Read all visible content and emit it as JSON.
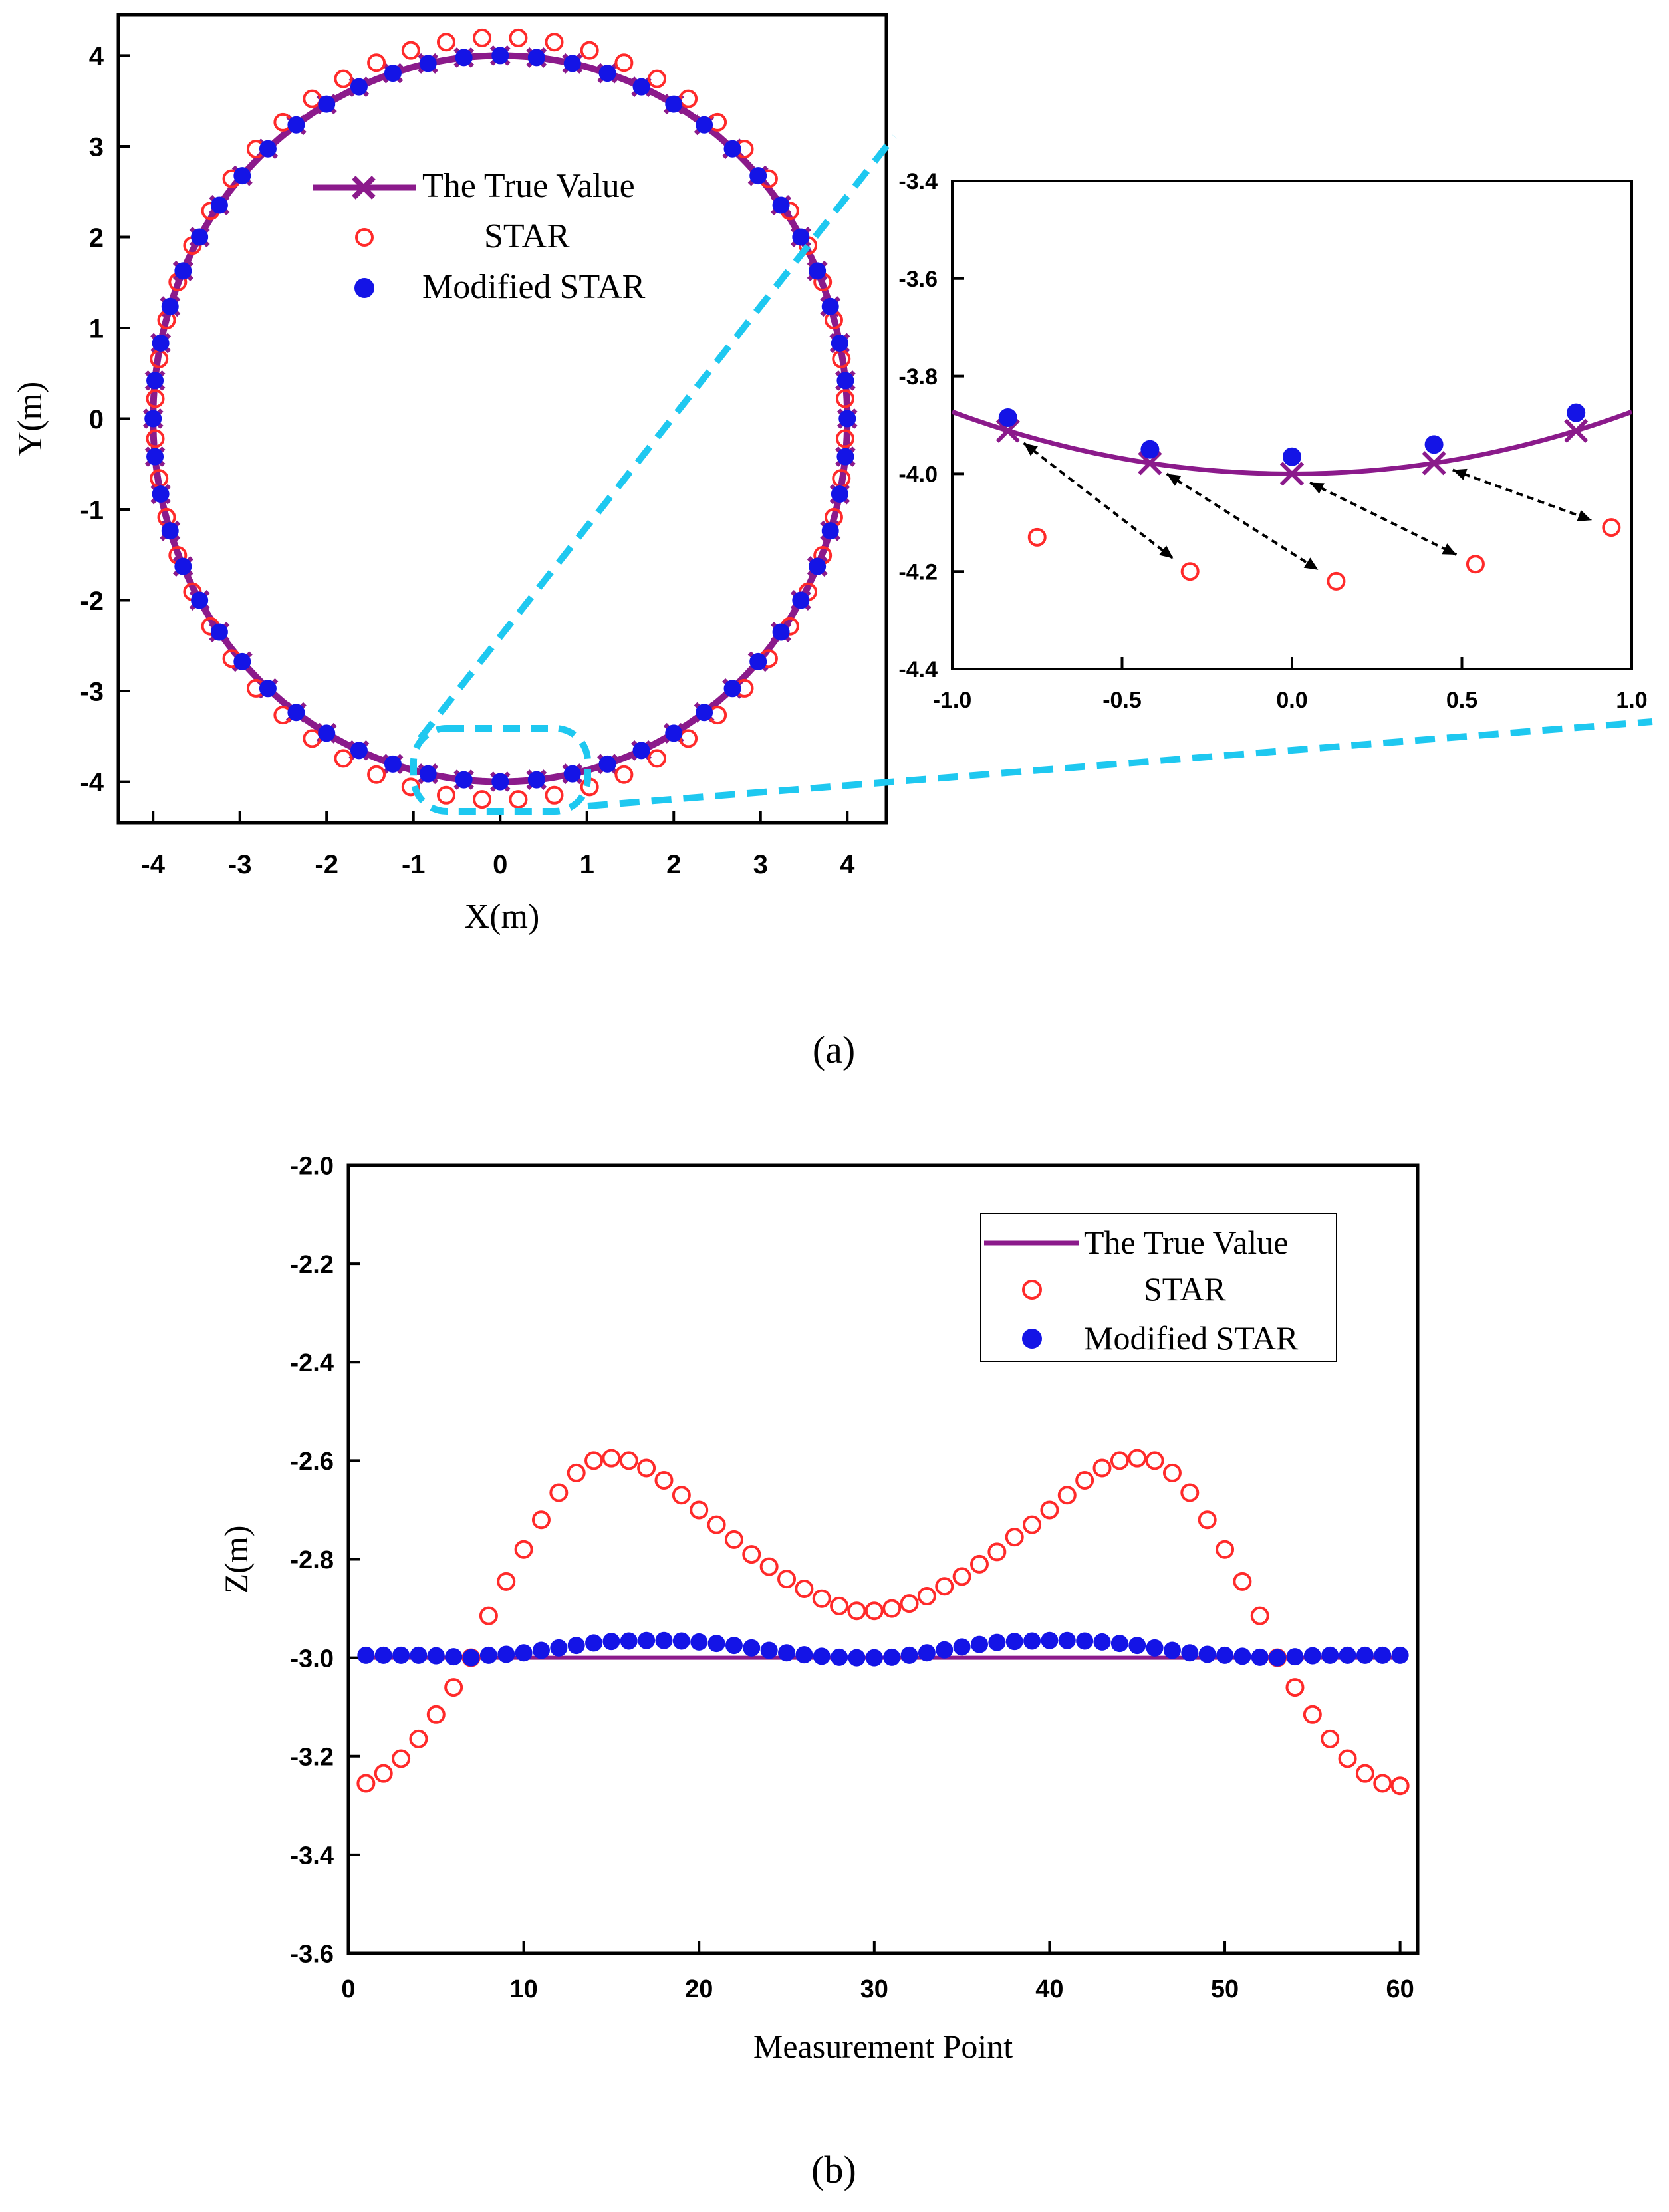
{
  "figure": {
    "panel_a_label": "(a)",
    "panel_b_label": "(b)"
  },
  "colors": {
    "true_value": "#8b1a8b",
    "star": "#ff2a2a",
    "modified_star": "#1414e6",
    "zoom_guide": "#1ec8f0",
    "arrow": "#000000"
  },
  "chart_data": [
    {
      "id": "a_main",
      "type": "scatter",
      "xlabel": "X(m)",
      "ylabel": "Y(m)",
      "xlim": [
        -4.4,
        4.45
      ],
      "ylim": [
        -4.45,
        4.45
      ],
      "xticks": [
        -4,
        -3,
        -2,
        -1,
        0,
        1,
        2,
        3,
        4
      ],
      "yticks": [
        -4,
        -3,
        -2,
        -1,
        0,
        1,
        2,
        3,
        4
      ],
      "legend": {
        "position": "center",
        "entries": [
          "The True Value",
          "STAR",
          "Modified STAR"
        ]
      },
      "series": [
        {
          "name": "The True Value",
          "kind": "line-with-x-markers",
          "shape": "circle",
          "radius": 4.0,
          "points": 60
        },
        {
          "name": "STAR",
          "kind": "open-circle-markers",
          "shape": "circle",
          "radius_y_top": 4.2,
          "radius_y_bottom": 4.2,
          "radius_x": 3.98,
          "points": 60
        },
        {
          "name": "Modified STAR",
          "kind": "filled-circle-markers",
          "shape": "circle",
          "radius": 4.0,
          "points": 60
        }
      ]
    },
    {
      "id": "a_inset",
      "type": "scatter",
      "xlabel": "",
      "ylabel": "",
      "xlim": [
        -1.0,
        1.0
      ],
      "ylim": [
        -4.4,
        -3.4
      ],
      "xticks": [
        -1.0,
        -0.5,
        0.0,
        0.5,
        1.0
      ],
      "xtick_labels": [
        "-1.0",
        "-0.5",
        "0.0",
        "0.5",
        "1.0"
      ],
      "yticks": [
        -4.4,
        -4.2,
        -4.0,
        -3.8,
        -3.6,
        -3.4
      ],
      "ytick_labels": [
        "-4.4",
        "-4.2",
        "-4.0",
        "-3.8",
        "-3.6",
        "-3.4"
      ],
      "series": [
        {
          "name": "The True Value",
          "x": [
            -0.836,
            -0.418,
            0.0,
            0.418,
            0.836
          ],
          "y": [
            -3.912,
            -3.978,
            -4.0,
            -3.978,
            -3.912
          ]
        },
        {
          "name": "STAR",
          "x": [
            -0.75,
            -0.3,
            0.13,
            0.54,
            0.94
          ],
          "y": [
            -4.13,
            -4.2,
            -4.22,
            -4.185,
            -4.11
          ]
        },
        {
          "name": "Modified STAR",
          "x": [
            -0.836,
            -0.418,
            0.0,
            0.418,
            0.836
          ],
          "y": [
            -3.885,
            -3.95,
            -3.965,
            -3.94,
            -3.875
          ]
        }
      ],
      "arrows": [
        {
          "from": [
            -0.836,
            -3.912
          ],
          "to": [
            -0.3,
            -4.2
          ]
        },
        {
          "from": [
            -0.418,
            -3.978
          ],
          "to": [
            0.13,
            -4.22
          ]
        },
        {
          "from": [
            0.0,
            -4.0
          ],
          "to": [
            0.54,
            -4.185
          ]
        },
        {
          "from": [
            0.418,
            -3.978
          ],
          "to": [
            0.94,
            -4.11
          ]
        }
      ]
    },
    {
      "id": "b",
      "type": "scatter",
      "xlabel": "Measurement Point",
      "ylabel": "Z(m)",
      "xlim": [
        0,
        61
      ],
      "ylim": [
        -3.6,
        -2.0
      ],
      "xticks": [
        0,
        10,
        20,
        30,
        40,
        50,
        60
      ],
      "yticks": [
        -3.6,
        -3.4,
        -3.2,
        -3.0,
        -2.8,
        -2.6,
        -2.4,
        -2.2,
        -2.0
      ],
      "ytick_labels": [
        "-3.6",
        "-3.4",
        "-3.2",
        "-3.0",
        "-2.8",
        "-2.6",
        "-2.4",
        "-2.2",
        "-2.0"
      ],
      "legend": {
        "position": "top-right",
        "entries": [
          "The True Value",
          "STAR",
          "Modified STAR"
        ]
      },
      "series": [
        {
          "name": "The True Value",
          "x_range": [
            1,
            60
          ],
          "y": -3.0
        },
        {
          "name": "STAR",
          "x": [
            1,
            2,
            3,
            4,
            5,
            6,
            7,
            8,
            9,
            10,
            11,
            12,
            13,
            14,
            15,
            16,
            17,
            18,
            19,
            20,
            21,
            22,
            23,
            24,
            25,
            26,
            27,
            28,
            29,
            30,
            31,
            32,
            33,
            34,
            35,
            36,
            37,
            38,
            39,
            40,
            41,
            42,
            43,
            44,
            45,
            46,
            47,
            48,
            49,
            50,
            51,
            52,
            53,
            54,
            55,
            56,
            57,
            58,
            59,
            60
          ],
          "y": [
            -3.255,
            -3.235,
            -3.205,
            -3.165,
            -3.115,
            -3.06,
            -3.0,
            -2.915,
            -2.845,
            -2.78,
            -2.72,
            -2.665,
            -2.625,
            -2.6,
            -2.595,
            -2.6,
            -2.615,
            -2.64,
            -2.67,
            -2.7,
            -2.73,
            -2.76,
            -2.79,
            -2.815,
            -2.84,
            -2.86,
            -2.88,
            -2.895,
            -2.905,
            -2.905,
            -2.9,
            -2.89,
            -2.875,
            -2.855,
            -2.835,
            -2.81,
            -2.785,
            -2.755,
            -2.73,
            -2.7,
            -2.67,
            -2.64,
            -2.615,
            -2.6,
            -2.595,
            -2.6,
            -2.625,
            -2.665,
            -2.72,
            -2.78,
            -2.845,
            -2.915,
            -3.0,
            -3.06,
            -3.115,
            -3.165,
            -3.205,
            -3.235,
            -3.255,
            -3.26
          ]
        },
        {
          "name": "Modified STAR",
          "x": [
            1,
            2,
            3,
            4,
            5,
            6,
            7,
            8,
            9,
            10,
            11,
            12,
            13,
            14,
            15,
            16,
            17,
            18,
            19,
            20,
            21,
            22,
            23,
            24,
            25,
            26,
            27,
            28,
            29,
            30,
            31,
            32,
            33,
            34,
            35,
            36,
            37,
            38,
            39,
            40,
            41,
            42,
            43,
            44,
            45,
            46,
            47,
            48,
            49,
            50,
            51,
            52,
            53,
            54,
            55,
            56,
            57,
            58,
            59,
            60
          ],
          "y": [
            -2.995,
            -2.995,
            -2.995,
            -2.995,
            -2.996,
            -2.998,
            -3.0,
            -2.995,
            -2.993,
            -2.99,
            -2.985,
            -2.98,
            -2.975,
            -2.97,
            -2.967,
            -2.966,
            -2.965,
            -2.965,
            -2.966,
            -2.968,
            -2.971,
            -2.975,
            -2.98,
            -2.985,
            -2.99,
            -2.994,
            -2.997,
            -2.999,
            -3.0,
            -3.0,
            -2.999,
            -2.995,
            -2.99,
            -2.984,
            -2.978,
            -2.973,
            -2.969,
            -2.967,
            -2.966,
            -2.965,
            -2.965,
            -2.966,
            -2.968,
            -2.971,
            -2.975,
            -2.98,
            -2.985,
            -2.99,
            -2.993,
            -2.995,
            -2.997,
            -2.999,
            -3.0,
            -2.998,
            -2.996,
            -2.995,
            -2.995,
            -2.995,
            -2.995,
            -2.995
          ]
        }
      ]
    }
  ]
}
